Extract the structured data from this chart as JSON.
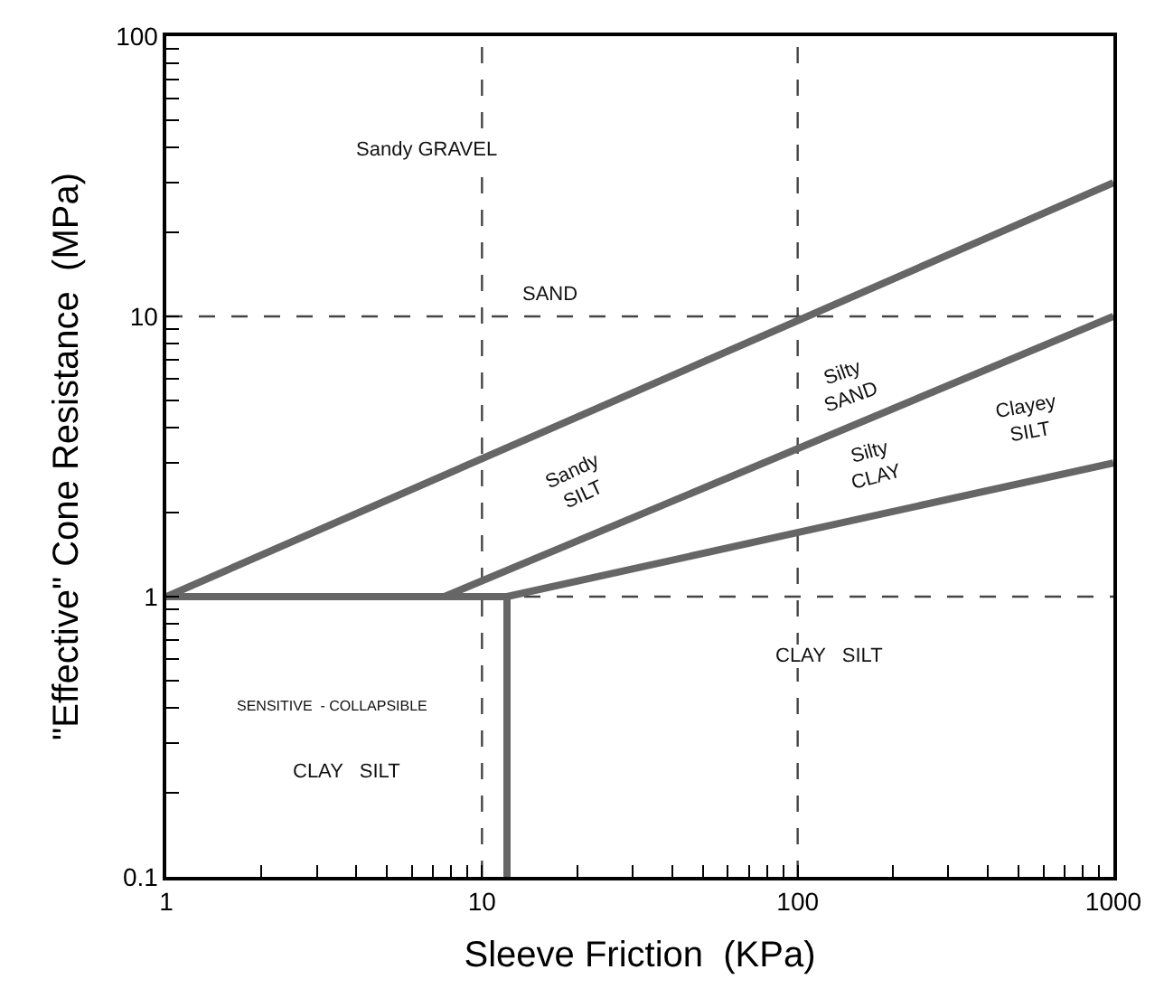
{
  "chart_data": {
    "type": "line",
    "xlabel": "Sleeve Friction  (KPa)",
    "ylabel": "\"Effective\" Cone Resistance  (MPa)",
    "log": "xy",
    "marker": "none",
    "line_style": "solid",
    "xlim": [
      1,
      1000
    ],
    "ylim": [
      0.1,
      100
    ],
    "xticks": [
      1,
      {
        "value": 2,
        "label": null
      },
      {
        "value": 3,
        "label": null
      },
      {
        "value": 4,
        "label": null
      },
      {
        "value": 5,
        "label": null
      },
      {
        "value": 6,
        "label": null
      },
      {
        "value": 7,
        "label": null
      },
      {
        "value": 8,
        "label": null
      },
      {
        "value": 9,
        "label": null
      },
      10,
      {
        "value": 20,
        "label": null
      },
      {
        "value": 30,
        "label": null
      },
      {
        "value": 40,
        "label": null
      },
      {
        "value": 50,
        "label": null
      },
      {
        "value": 60,
        "label": null
      },
      {
        "value": 70,
        "label": null
      },
      {
        "value": 80,
        "label": null
      },
      {
        "value": 90,
        "label": null
      },
      100,
      {
        "value": 200,
        "label": null
      },
      {
        "value": 300,
        "label": null
      },
      {
        "value": 400,
        "label": null
      },
      {
        "value": 500,
        "label": null
      },
      {
        "value": 600,
        "label": null
      },
      {
        "value": 700,
        "label": null
      },
      {
        "value": 800,
        "label": null
      },
      {
        "value": 900,
        "label": null
      },
      1000
    ],
    "yticks": [
      0.1,
      {
        "value": 0.2,
        "label": null
      },
      {
        "value": 0.3,
        "label": null
      },
      {
        "value": 0.4,
        "label": null
      },
      {
        "value": 0.5,
        "label": null
      },
      {
        "value": 0.6,
        "label": null
      },
      {
        "value": 0.7,
        "label": null
      },
      {
        "value": 0.8,
        "label": null
      },
      {
        "value": 0.9,
        "label": null
      },
      1,
      {
        "value": 2,
        "label": null
      },
      {
        "value": 3,
        "label": null
      },
      {
        "value": 4,
        "label": null
      },
      {
        "value": 5,
        "label": null
      },
      {
        "value": 6,
        "label": null
      },
      {
        "value": 7,
        "label": null
      },
      {
        "value": 8,
        "label": null
      },
      {
        "value": 9,
        "label": null
      },
      10,
      {
        "value": 20,
        "label": null
      },
      {
        "value": 30,
        "label": null
      },
      {
        "value": 40,
        "label": null
      },
      {
        "value": 50,
        "label": null
      },
      {
        "value": 60,
        "label": null
      },
      {
        "value": 70,
        "label": null
      },
      {
        "value": 80,
        "label": null
      },
      {
        "value": 90,
        "label": null
      },
      100
    ],
    "series": [
      {
        "color": "#666666",
        "x": [
          1,
          1000
        ],
        "values": [
          1,
          30
        ]
      },
      {
        "color": "#666666",
        "x": [
          7.6,
          1000
        ],
        "values": [
          1,
          10
        ]
      },
      {
        "color": "#666666",
        "x": [
          1,
          12,
          1000
        ],
        "values": [
          1,
          1,
          3
        ]
      },
      {
        "color": "#666666",
        "x": [
          12,
          12
        ],
        "values": [
          0.1,
          1
        ]
      }
    ],
    "ref_lines": [
      {
        "axis": "x",
        "value": 10,
        "color": "#444444",
        "line_style": "dashed"
      },
      {
        "axis": "x",
        "value": 100,
        "color": "#444444",
        "line_style": "dashed"
      },
      {
        "axis": "y",
        "value": 1,
        "color": "#444444",
        "line_style": "dashed"
      },
      {
        "axis": "y",
        "value": 10,
        "color": "#444444",
        "line_style": "dashed"
      }
    ],
    "annotations": [
      "Sandy GRAVEL",
      "SAND",
      "Sandy\nSILT",
      "Silty\nSAND",
      "Silty\nCLAY",
      "Clayey\nSILT",
      "CLAY   SILT",
      "SENSITIVE  - COLLAPSIBLE",
      "CLAY   SILT"
    ]
  }
}
